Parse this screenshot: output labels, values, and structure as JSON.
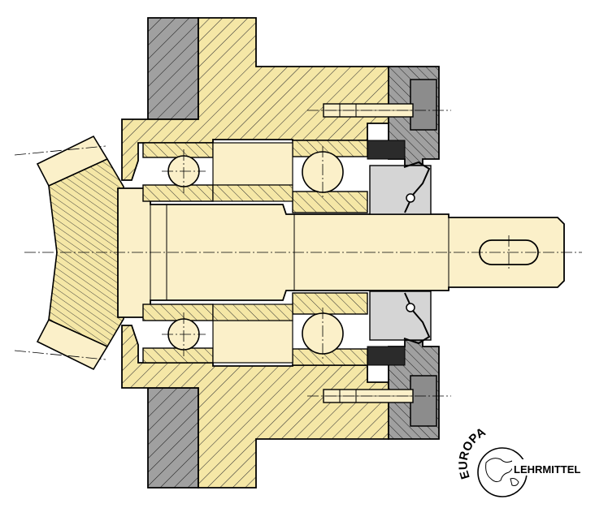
{
  "logo": {
    "arc_text": "EUROPA",
    "word": "LEHRMITTEL"
  },
  "colors": {
    "cream": "#FBF0C9",
    "hatch_yellow": "#F5E7A6",
    "gray": "#A0A0A0",
    "gray_light": "#D5D5D5",
    "outline": "#000000"
  }
}
